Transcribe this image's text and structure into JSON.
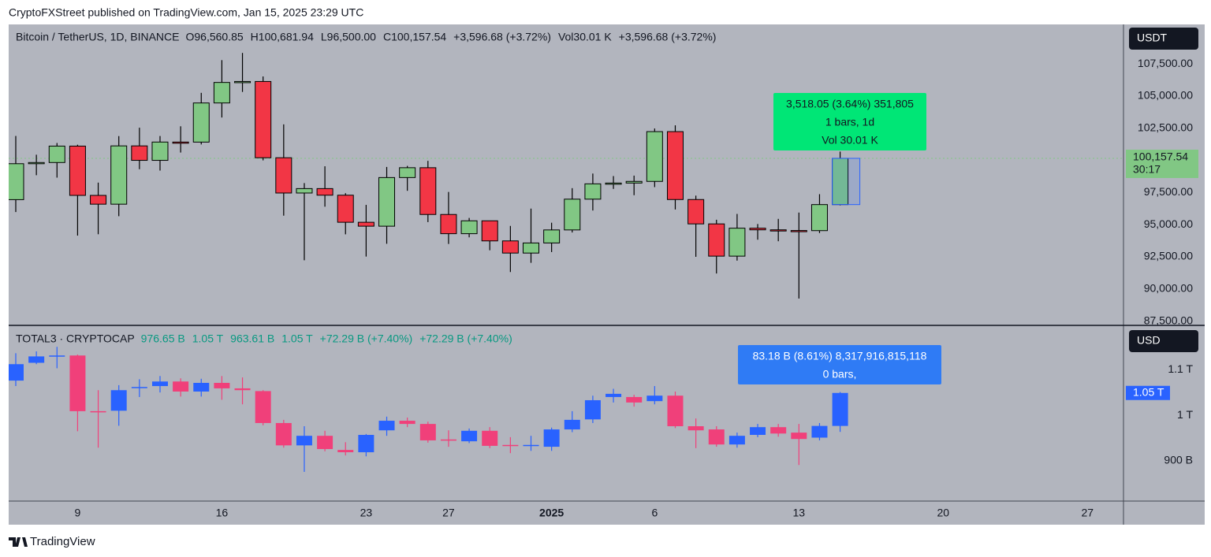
{
  "header": {
    "title": "CryptoFXStreet published on TradingView.com, Jan 15, 2025 23:29 UTC"
  },
  "footer": {
    "brand": "TradingView"
  },
  "chart_data": [
    {
      "type": "candlestick",
      "title": "Bitcoin / TetherUS, 1D, BINANCE",
      "legend": [
        {
          "key": "O",
          "text": "96,560.85"
        },
        {
          "key": "H",
          "text": "100,681.94"
        },
        {
          "key": "L",
          "text": "96,500.00"
        },
        {
          "key": "C",
          "text": "100,157.54"
        },
        {
          "text": "+3,596.68 (+3.72%)"
        },
        {
          "key": "Vol",
          "text": "30.01 K"
        },
        {
          "text": "+3,596.68 (+3.72%)"
        }
      ],
      "legend_color": "#131722",
      "currency": "USDT",
      "price_label": "100,157.54",
      "countdown": "30:17",
      "measure": [
        "3,518.05 (3.64%) 351,805",
        "1 bars, 1d",
        "Vol 30.01 K"
      ],
      "measure_color": "#00e676",
      "up_color": "#81c784",
      "down_color": "#f23645",
      "outline_color": "#000000",
      "open": [
        96945,
        99740,
        99831,
        101109,
        97276,
        96593,
        101125,
        100001,
        101424,
        101420,
        104463,
        106058,
        106133,
        100204,
        97461,
        97805,
        97291,
        95186,
        94881,
        98663,
        99429,
        95792,
        94299,
        95300,
        93738,
        92792,
        93576,
        94591,
        96984,
        98174,
        98236,
        98363,
        102235,
        96954,
        95060,
        92552,
        94726,
        94599,
        94545,
        94536,
        96560.85,
        null,
        null,
        null,
        null,
        null,
        null,
        null,
        null,
        null,
        null,
        null,
        null,
        null
      ],
      "high": [
        101898,
        100439,
        101351,
        101215,
        98270,
        101888,
        102540,
        101895,
        102650,
        105250,
        107793,
        108353,
        106524,
        102800,
        98233,
        99540,
        97448,
        96538,
        99487,
        99569,
        99963,
        97544,
        95525,
        95300,
        94903,
        96250,
        95151,
        97839,
        98976,
        98778,
        98813,
        102480,
        102724,
        97258,
        95382,
        95836,
        95050,
        95450,
        95940,
        97371,
        100681.94,
        null,
        null,
        null,
        null,
        null,
        null,
        null,
        null,
        null,
        null,
        null,
        null,
        null
      ],
      "low": [
        95981,
        98844,
        98657,
        94150,
        94256,
        95658,
        99311,
        99205,
        100609,
        101237,
        103333,
        105321,
        100000,
        95700,
        92232,
        96398,
        94250,
        92520,
        93515,
        97632,
        95199,
        93500,
        94014,
        93009,
        91317,
        92033,
        92870,
        94392,
        96100,
        97781,
        97291,
        97920,
        96181,
        92500,
        91203,
        92206,
        93831,
        93711,
        89256,
        94346,
        96500,
        null,
        null,
        null,
        null,
        null,
        null,
        null,
        null,
        null,
        null,
        null,
        null,
        null
      ],
      "close": [
        99740,
        99831,
        101109,
        97276,
        96593,
        101125,
        100001,
        101424,
        101420,
        104463,
        106058,
        106133,
        100204,
        97461,
        97805,
        97291,
        95186,
        94881,
        98663,
        99429,
        95792,
        94299,
        95300,
        93738,
        92792,
        93576,
        94591,
        96984,
        98174,
        98236,
        98363,
        102235,
        96954,
        95060,
        92552,
        94726,
        94599,
        94545,
        94536,
        96560.86,
        100157.54,
        null,
        null,
        null,
        null,
        null,
        null,
        null,
        null,
        null,
        null,
        null,
        null,
        null
      ],
      "ylim": [
        87230,
        110570
      ],
      "yticks": [
        {
          "value": 87500,
          "label": "87,500.00"
        },
        {
          "value": 90000,
          "label": "90,000.00"
        },
        {
          "value": 92500,
          "label": "92,500.00"
        },
        {
          "value": 95000,
          "label": "95,000.00"
        },
        {
          "value": 97500,
          "label": "97,500.00"
        },
        {
          "value": 102500,
          "label": "102,500.00"
        },
        {
          "value": 105000,
          "label": "105,000.00"
        },
        {
          "value": 107500,
          "label": "107,500.00"
        }
      ]
    },
    {
      "type": "candlestick",
      "title": "TOTAL3 · CRYPTOCAP",
      "categories": [
        null,
        null,
        null,
        "9",
        null,
        null,
        null,
        null,
        null,
        null,
        "16",
        null,
        null,
        null,
        null,
        null,
        null,
        "23",
        null,
        null,
        null,
        "27",
        null,
        null,
        null,
        null,
        "2025",
        null,
        null,
        null,
        null,
        "6",
        null,
        null,
        null,
        null,
        null,
        null,
        "13",
        null,
        null,
        null,
        null,
        null,
        null,
        "20",
        null,
        null,
        null,
        null,
        null,
        null,
        "27",
        null
      ],
      "legend": [
        {
          "text": "976.65 B"
        },
        {
          "text": "1.05 T"
        },
        {
          "text": "963.61 B"
        },
        {
          "text": "1.05 T"
        },
        {
          "text": "+72.29 B (+7.40%)"
        },
        {
          "text": "+72.29 B (+7.40%)"
        }
      ],
      "legend_color": "#089981",
      "currency": "USD",
      "price_label": "1.05 T",
      "measure": [
        "83.18 B (8.61%) 8,317,916,815,118",
        "0 bars,"
      ],
      "measure_color": "#2f7bf5",
      "up_color": "#2962ff",
      "down_color": "#f0407a",
      "open": [
        1076,
        1115,
        1129,
        1131,
        1009,
        1010,
        1060,
        1064,
        1074,
        1052,
        1071,
        1059,
        1053,
        983,
        934,
        955,
        924,
        919,
        967,
        988,
        981,
        947,
        943,
        966,
        935,
        933,
        931,
        969,
        991,
        1040,
        1040,
        1031,
        1043,
        976,
        969,
        936,
        957,
        974,
        962,
        951,
        976.65,
        null,
        null,
        null,
        null,
        null,
        null,
        null,
        null,
        null,
        null,
        null,
        null,
        null
      ],
      "high": [
        1136,
        1140,
        1150,
        1133,
        1055,
        1066,
        1079,
        1086,
        1081,
        1080,
        1086,
        1083,
        1055,
        990,
        976,
        966,
        941,
        959,
        997,
        995,
        986,
        967,
        971,
        974,
        952,
        955,
        973,
        1009,
        1043,
        1058,
        1045,
        1064,
        1052,
        993,
        976,
        962,
        981,
        981,
        981,
        983,
        1051,
        null,
        null,
        null,
        null,
        null,
        null,
        null,
        null,
        null,
        null,
        null,
        null,
        null
      ],
      "low": [
        1064,
        1112,
        1103,
        965,
        929,
        977,
        1040,
        1050,
        1041,
        1041,
        1034,
        1024,
        978,
        929,
        876,
        921,
        912,
        910,
        955,
        974,
        940,
        931,
        939,
        928,
        917,
        922,
        922,
        963,
        983,
        1028,
        1019,
        1024,
        972,
        928,
        931,
        929,
        952,
        953,
        891,
        945,
        963.61,
        null,
        null,
        null,
        null,
        null,
        null,
        null,
        null,
        null,
        null,
        null,
        null,
        null
      ],
      "close": [
        1112,
        1129,
        1131,
        1009,
        1008,
        1055,
        1062,
        1074,
        1052,
        1071,
        1059,
        1055,
        983,
        934,
        955,
        926,
        919,
        957,
        988,
        981,
        945,
        946,
        966,
        933,
        934,
        935,
        969,
        990,
        1033,
        1047,
        1028,
        1043,
        976,
        967,
        936,
        955,
        974,
        960,
        948,
        976.65,
        1048.94,
        null,
        null,
        null,
        null,
        null,
        null,
        null,
        null,
        null,
        null,
        null,
        null,
        null
      ],
      "ylim": [
        812,
        1197
      ],
      "yticks": [
        {
          "value": 900,
          "label": "900 B"
        },
        {
          "value": 1000,
          "label": "1 T"
        },
        {
          "value": 1100,
          "label": "1.1 T"
        }
      ]
    }
  ]
}
